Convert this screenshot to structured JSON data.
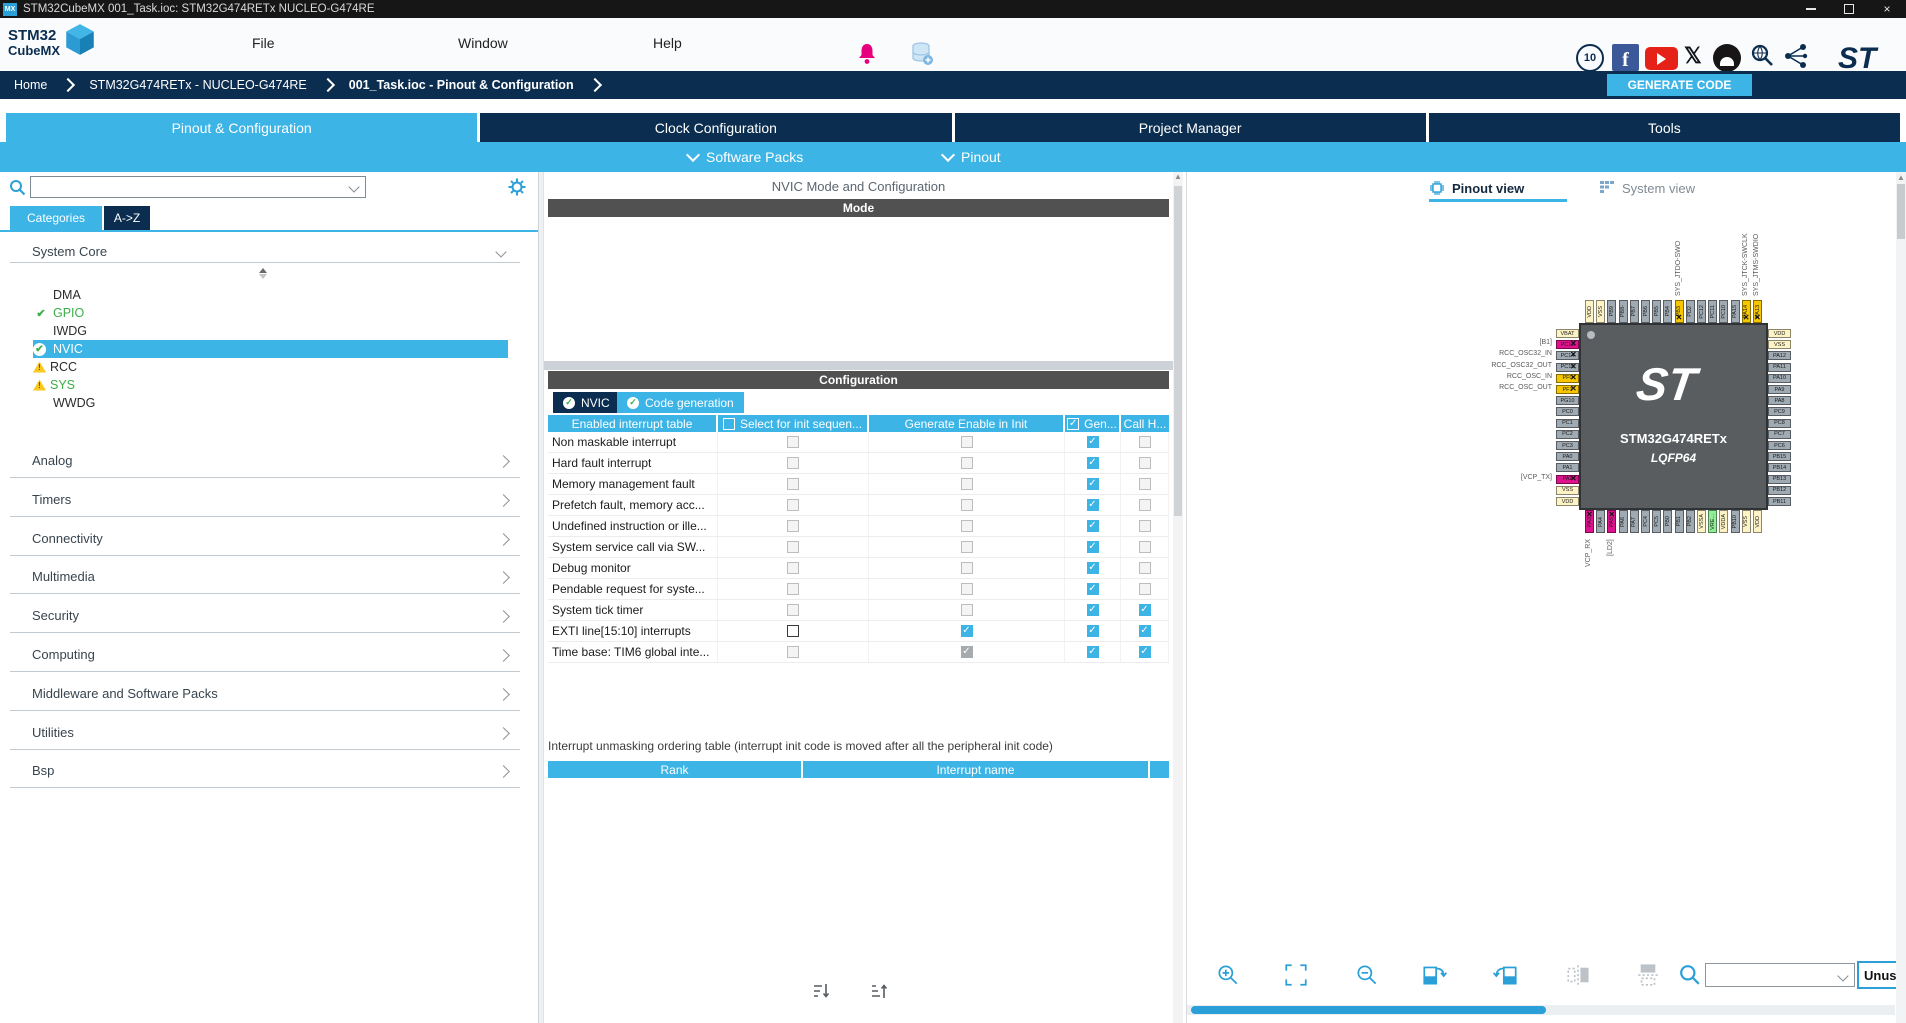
{
  "window": {
    "title": "STM32CubeMX 001_Task.ioc: STM32G474RETx NUCLEO-G474RE",
    "mx_badge": "MX"
  },
  "menu": {
    "items": [
      "File",
      "Window",
      "Help"
    ],
    "logo_line1": "STM32",
    "logo_line2": "CubeMX"
  },
  "social": {
    "icons": [
      "ten-years-badge",
      "facebook",
      "youtube",
      "x",
      "github",
      "wiki-search",
      "community-share",
      "st-logo"
    ]
  },
  "breadcrumb": {
    "items": [
      "Home",
      "STM32G474RETx  -  NUCLEO-G474RE",
      "001_Task.ioc - Pinout & Configuration"
    ],
    "generate_button": "GENERATE CODE"
  },
  "main_tabs": [
    {
      "label": "Pinout & Configuration",
      "active": true
    },
    {
      "label": "Clock Configuration",
      "active": false
    },
    {
      "label": "Project Manager",
      "active": false
    },
    {
      "label": "Tools",
      "active": false
    }
  ],
  "sub_tabs": [
    "Software Packs",
    "Pinout"
  ],
  "sidebar": {
    "search_placeholder": "",
    "tabs": [
      {
        "label": "Categories",
        "active": true
      },
      {
        "label": "A->Z",
        "active": false
      }
    ],
    "system_core": {
      "label": "System Core",
      "items": [
        {
          "name": "DMA",
          "status": "none",
          "green": false,
          "selected": false
        },
        {
          "name": "GPIO",
          "status": "check",
          "green": true,
          "selected": false
        },
        {
          "name": "IWDG",
          "status": "none",
          "green": false,
          "selected": false
        },
        {
          "name": "NVIC",
          "status": "check-selected",
          "green": false,
          "selected": true
        },
        {
          "name": "RCC",
          "status": "warning",
          "green": false,
          "selected": false
        },
        {
          "name": "SYS",
          "status": "warning",
          "green": true,
          "selected": false
        },
        {
          "name": "WWDG",
          "status": "none",
          "green": false,
          "selected": false
        }
      ]
    },
    "categories": [
      "Analog",
      "Timers",
      "Connectivity",
      "Multimedia",
      "Security",
      "Computing",
      "Middleware and Software Packs",
      "Utilities",
      "Bsp"
    ]
  },
  "middle": {
    "title": "NVIC Mode and Configuration",
    "mode_header": "Mode",
    "config_header": "Configuration",
    "config_tabs": [
      {
        "label": "NVIC",
        "active": true
      },
      {
        "label": "Code generation",
        "active": false
      }
    ],
    "table": {
      "headers": [
        "Enabled interrupt table",
        "Select for init sequen...",
        "Generate Enable in Init",
        "Gen...",
        "Call H..."
      ],
      "rows": [
        {
          "name": "Non maskable interrupt",
          "select_init": "du",
          "generate_enable": "du",
          "generate_irq": "c",
          "call_handler": "du"
        },
        {
          "name": "Hard fault interrupt",
          "select_init": "du",
          "generate_enable": "du",
          "generate_irq": "c",
          "call_handler": "du"
        },
        {
          "name": "Memory management fault",
          "select_init": "du",
          "generate_enable": "du",
          "generate_irq": "c",
          "call_handler": "du"
        },
        {
          "name": "Prefetch fault, memory acc...",
          "select_init": "du",
          "generate_enable": "du",
          "generate_irq": "c",
          "call_handler": "du"
        },
        {
          "name": "Undefined instruction or ille...",
          "select_init": "du",
          "generate_enable": "du",
          "generate_irq": "c",
          "call_handler": "du"
        },
        {
          "name": "System service call via SW...",
          "select_init": "du",
          "generate_enable": "du",
          "generate_irq": "c",
          "call_handler": "du"
        },
        {
          "name": "Debug monitor",
          "select_init": "du",
          "generate_enable": "du",
          "generate_irq": "c",
          "call_handler": "du"
        },
        {
          "name": "Pendable request for syste...",
          "select_init": "du",
          "generate_enable": "du",
          "generate_irq": "c",
          "call_handler": "du"
        },
        {
          "name": "System tick timer",
          "select_init": "du",
          "generate_enable": "du",
          "generate_irq": "c",
          "call_handler": "c"
        },
        {
          "name": "EXTI line[15:10] interrupts",
          "select_init": "eu",
          "generate_enable": "c",
          "generate_irq": "c",
          "call_handler": "c"
        },
        {
          "name": "Time base: TIM6 global inte...",
          "select_init": "du",
          "generate_enable": "cd",
          "generate_irq": "c",
          "call_handler": "c"
        }
      ]
    },
    "footer_note": "Interrupt unmasking ordering table (interrupt init code is moved after all the peripheral init code)",
    "rank_table_headers": [
      "Rank",
      "Interrupt name"
    ],
    "icons": [
      "sort-descending-icon",
      "sort-ascending-icon"
    ]
  },
  "right": {
    "tabs": [
      {
        "label": "Pinout view",
        "active": true
      },
      {
        "label": "System view",
        "active": false
      }
    ],
    "chip": {
      "name": "STM32G474RETx",
      "package": "LQFP64",
      "logo": "ST",
      "colors": {
        "gpio": "#9faab3",
        "power": "#fdf3c4",
        "sys": "#f6c700",
        "board": "#e0118f",
        "vref": "#8fee96"
      },
      "pins_top": [
        {
          "n": "VDD",
          "t": "power"
        },
        {
          "n": "VSS",
          "t": "power"
        },
        {
          "n": "PB9",
          "t": "gpio"
        },
        {
          "n": "PB8-",
          "t": "gpio"
        },
        {
          "n": "PB7",
          "t": "gpio"
        },
        {
          "n": "PB6",
          "t": "gpio"
        },
        {
          "n": "PB5",
          "t": "gpio"
        },
        {
          "n": "PB4",
          "t": "gpio"
        },
        {
          "n": "PB3",
          "t": "sys",
          "label": "SYS_JTDO-SWO",
          "mark": true
        },
        {
          "n": "PD2",
          "t": "gpio"
        },
        {
          "n": "PC12",
          "t": "gpio"
        },
        {
          "n": "PC11",
          "t": "gpio"
        },
        {
          "n": "PC10",
          "t": "gpio"
        },
        {
          "n": "PA15",
          "t": "gpio"
        },
        {
          "n": "PA14",
          "t": "sys",
          "label": "SYS_JTCK-SWCLK",
          "mark": true
        },
        {
          "n": "PA13",
          "t": "sys",
          "label": "SYS_JTMS-SWDIO",
          "mark": true
        }
      ],
      "pins_left": [
        {
          "n": "VBAT",
          "t": "power"
        },
        {
          "n": "PC13",
          "t": "board",
          "label": "[B1]",
          "mark": true
        },
        {
          "n": "PC14",
          "t": "gpio",
          "label": "RCC_OSC32_IN",
          "mark": true
        },
        {
          "n": "PC15",
          "t": "gpio",
          "label": "RCC_OSC32_OUT",
          "mark": true
        },
        {
          "n": "PF0",
          "t": "sys",
          "label": "RCC_OSC_IN",
          "mark": true
        },
        {
          "n": "PF1",
          "t": "sys",
          "label": "RCC_OSC_OUT",
          "mark": true
        },
        {
          "n": "PG10",
          "t": "gpio"
        },
        {
          "n": "PC0",
          "t": "gpio"
        },
        {
          "n": "PC1",
          "t": "gpio"
        },
        {
          "n": "PC2",
          "t": "gpio"
        },
        {
          "n": "PC3",
          "t": "gpio"
        },
        {
          "n": "PA0",
          "t": "gpio"
        },
        {
          "n": "PA1",
          "t": "gpio"
        },
        {
          "n": "PA2",
          "t": "board",
          "label": "[VCP_TX]",
          "mark": true
        },
        {
          "n": "VSS",
          "t": "power"
        },
        {
          "n": "VDD",
          "t": "power"
        }
      ],
      "pins_right": [
        {
          "n": "VDD",
          "t": "power"
        },
        {
          "n": "VSS",
          "t": "power"
        },
        {
          "n": "PA12",
          "t": "gpio"
        },
        {
          "n": "PA11",
          "t": "gpio"
        },
        {
          "n": "PA10",
          "t": "gpio"
        },
        {
          "n": "PA9",
          "t": "gpio"
        },
        {
          "n": "PA8",
          "t": "gpio"
        },
        {
          "n": "PC9",
          "t": "gpio"
        },
        {
          "n": "PC8",
          "t": "gpio"
        },
        {
          "n": "PC7",
          "t": "gpio"
        },
        {
          "n": "PC6",
          "t": "gpio"
        },
        {
          "n": "PB15",
          "t": "gpio"
        },
        {
          "n": "PB14",
          "t": "gpio"
        },
        {
          "n": "PB13",
          "t": "gpio"
        },
        {
          "n": "PB12",
          "t": "gpio"
        },
        {
          "n": "PB11",
          "t": "gpio"
        }
      ],
      "pins_bottom": [
        {
          "n": "PA3",
          "t": "board",
          "label": "VCP_RX",
          "mark": true
        },
        {
          "n": "PA4",
          "t": "gpio"
        },
        {
          "n": "PA5",
          "t": "board",
          "label": "[LD2]",
          "mark": true
        },
        {
          "n": "PA6",
          "t": "gpio"
        },
        {
          "n": "PA7",
          "t": "gpio"
        },
        {
          "n": "PC4",
          "t": "gpio"
        },
        {
          "n": "PC5",
          "t": "gpio"
        },
        {
          "n": "PB0",
          "t": "gpio"
        },
        {
          "n": "PB1",
          "t": "gpio"
        },
        {
          "n": "PB2",
          "t": "gpio"
        },
        {
          "n": "VSSA",
          "t": "power"
        },
        {
          "n": "VRE...",
          "t": "vref"
        },
        {
          "n": "VDDA",
          "t": "power"
        },
        {
          "n": "PB10",
          "t": "gpio"
        },
        {
          "n": "VSS",
          "t": "power"
        },
        {
          "n": "VDD",
          "t": "power"
        }
      ]
    },
    "toolbar": [
      "zoom-in",
      "fit-to-screen",
      "zoom-out",
      "rotate-clockwise",
      "rotate-counterclockwise",
      "flip-horizontal",
      "flip-vertical",
      "pin-search"
    ],
    "unused_button": "Unus..."
  }
}
